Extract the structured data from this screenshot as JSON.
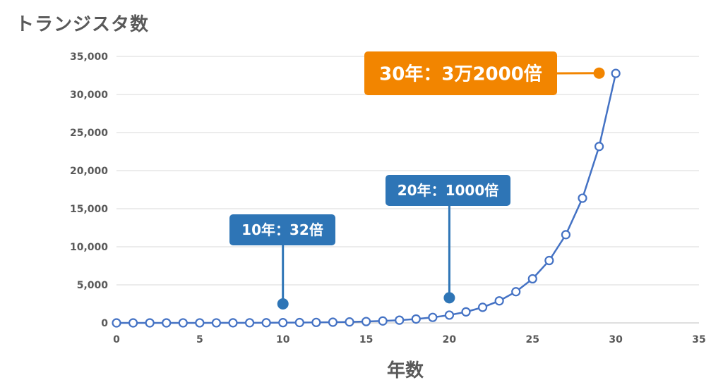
{
  "chart_data": {
    "type": "line",
    "ylabel": "トランジスタ数",
    "xlabel": "年数",
    "xlim": [
      0,
      35
    ],
    "ylim": [
      0,
      35000
    ],
    "xticks": [
      0,
      5,
      10,
      15,
      20,
      25,
      30,
      35
    ],
    "yticks": [
      0,
      5000,
      10000,
      15000,
      20000,
      25000,
      30000,
      35000
    ],
    "ytick_labels": [
      "0",
      "5,000",
      "10,000",
      "15,000",
      "20,000",
      "25,000",
      "30,000",
      "35,000"
    ],
    "grid": true,
    "series": [
      {
        "color": "#4472C4",
        "marker": "circle-hollow",
        "x": [
          0,
          1,
          2,
          3,
          4,
          5,
          6,
          7,
          8,
          9,
          10,
          11,
          12,
          13,
          14,
          15,
          16,
          17,
          18,
          19,
          20,
          21,
          22,
          23,
          24,
          25,
          26,
          27,
          28,
          29,
          30
        ],
        "y": [
          1,
          1.4,
          2,
          2.8,
          4,
          5.7,
          8,
          11.3,
          16,
          22.6,
          32,
          45,
          64,
          91,
          128,
          181,
          256,
          362,
          512,
          724,
          1024,
          1448,
          2048,
          2896,
          4096,
          5793,
          8192,
          11585,
          16384,
          23170,
          32768
        ]
      }
    ],
    "annotations": [
      {
        "text": "10年：32倍",
        "x": 10,
        "marker_y": 2500,
        "color": "#2E75B6"
      },
      {
        "text": "20年：1000倍",
        "x": 20,
        "marker_y": 3300,
        "color": "#2E75B6"
      },
      {
        "text": "30年：3万2000倍",
        "x": 29,
        "marker_y": 32800,
        "color": "#F28500"
      }
    ]
  }
}
